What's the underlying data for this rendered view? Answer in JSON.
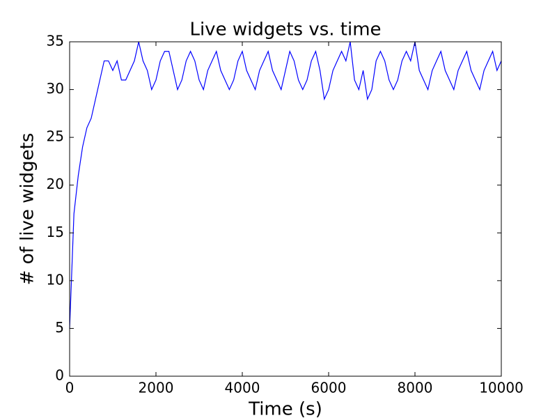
{
  "chart_data": {
    "type": "line",
    "title": "Live widgets vs. time",
    "x_label": "Time (s)",
    "y_label": "# of live widgets",
    "x": [
      0,
      100,
      200,
      300,
      400,
      500,
      600,
      700,
      800,
      900,
      1000,
      1100,
      1200,
      1300,
      1400,
      1500,
      1600,
      1700,
      1800,
      1900,
      2000,
      2100,
      2200,
      2300,
      2400,
      2500,
      2600,
      2700,
      2800,
      2900,
      3000,
      3100,
      3200,
      3300,
      3400,
      3500,
      3600,
      3700,
      3800,
      3900,
      4000,
      4100,
      4200,
      4300,
      4400,
      4500,
      4600,
      4700,
      4800,
      4900,
      5000,
      5100,
      5200,
      5300,
      5400,
      5500,
      5600,
      5700,
      5800,
      5900,
      6000,
      6100,
      6200,
      6300,
      6400,
      6500,
      6600,
      6700,
      6800,
      6900,
      7000,
      7100,
      7200,
      7300,
      7400,
      7500,
      7600,
      7700,
      7800,
      7900,
      8000,
      8100,
      8200,
      8300,
      8400,
      8500,
      8600,
      8700,
      8800,
      8900,
      9000,
      9100,
      9200,
      9300,
      9400,
      9500,
      9600,
      9700,
      9800,
      9900,
      10000
    ],
    "series": [
      {
        "color": "#0000ff",
        "values": [
          5,
          17,
          21,
          24,
          26,
          27,
          29,
          31,
          33,
          33,
          32,
          33,
          31,
          31,
          32,
          33,
          35,
          33,
          32,
          30,
          31,
          33,
          34,
          34,
          32,
          30,
          31,
          33,
          34,
          33,
          31,
          30,
          32,
          33,
          34,
          32,
          31,
          30,
          31,
          33,
          34,
          32,
          31,
          30,
          32,
          33,
          34,
          32,
          31,
          30,
          32,
          34,
          33,
          31,
          30,
          31,
          33,
          34,
          32,
          29,
          30,
          32,
          33,
          34,
          33,
          35,
          31,
          30,
          32,
          29,
          30,
          33,
          34,
          33,
          31,
          30,
          31,
          33,
          34,
          33,
          35,
          32,
          31,
          30,
          32,
          33,
          34,
          32,
          31,
          30,
          32,
          33,
          34,
          32,
          31,
          30,
          32,
          33,
          34,
          32,
          33
        ]
      }
    ],
    "xlim": [
      0,
      10000
    ],
    "ylim": [
      0,
      35
    ],
    "xticks": [
      0,
      2000,
      4000,
      6000,
      8000,
      10000
    ],
    "yticks": [
      0,
      5,
      10,
      15,
      20,
      25,
      30,
      35
    ]
  }
}
